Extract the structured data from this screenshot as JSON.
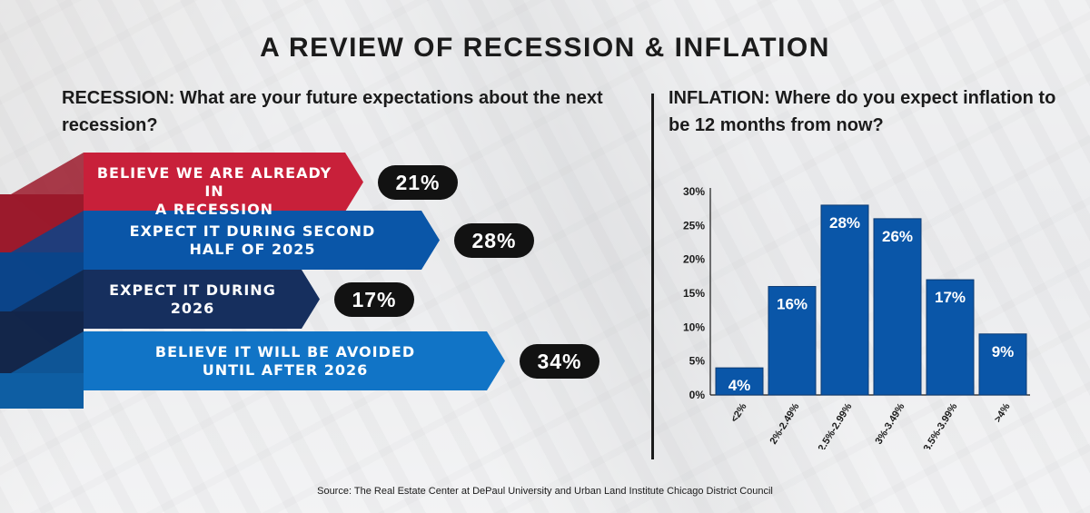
{
  "title": "A REVIEW OF RECESSION & INFLATION",
  "recession": {
    "question": "RECESSION: What are your future expectations about the next recession?",
    "items": [
      {
        "label_lines": [
          "BELIEVE WE ARE ALREADY IN",
          "A RECESSION"
        ],
        "value": 21,
        "value_label": "21%",
        "color": "#c8203a",
        "side_color": "#9b1a2c"
      },
      {
        "label_lines": [
          "EXPECT IT DURING SECOND",
          "HALF OF 2025"
        ],
        "value": 28,
        "value_label": "28%",
        "color": "#0a56a8",
        "side_color": "#0b4489"
      },
      {
        "label_lines": [
          "EXPECT IT DURING",
          "2026"
        ],
        "value": 17,
        "value_label": "17%",
        "color": "#162f5e",
        "side_color": "#13264a"
      },
      {
        "label_lines": [
          "BELIEVE IT WILL BE AVOIDED",
          "UNTIL AFTER 2026"
        ],
        "value": 34,
        "value_label": "34%",
        "color": "#1174c6",
        "side_color": "#0e5ea3"
      }
    ]
  },
  "inflation": {
    "question": "INFLATION: Where do you expect inflation to be 12 months from now?"
  },
  "chart_data": {
    "type": "bar",
    "categories": [
      "<2%",
      "2%-2.49%",
      "2.5%-2.99%",
      "3%-3.49%",
      "3.5%-3.99%",
      ">4%"
    ],
    "values": [
      4,
      16,
      28,
      26,
      17,
      9
    ],
    "value_labels": [
      "4%",
      "16%",
      "28%",
      "26%",
      "17%",
      "9%"
    ],
    "ylim": [
      0,
      30
    ],
    "yticks": [
      0,
      5,
      10,
      15,
      20,
      25,
      30
    ],
    "ytick_labels": [
      "0%",
      "5%",
      "10%",
      "15%",
      "20%",
      "25%",
      "30%"
    ],
    "bar_color": "#0a56a8",
    "grid": false
  },
  "source": "Source: The Real Estate Center at DePaul University and Urban Land Institute Chicago District Council"
}
